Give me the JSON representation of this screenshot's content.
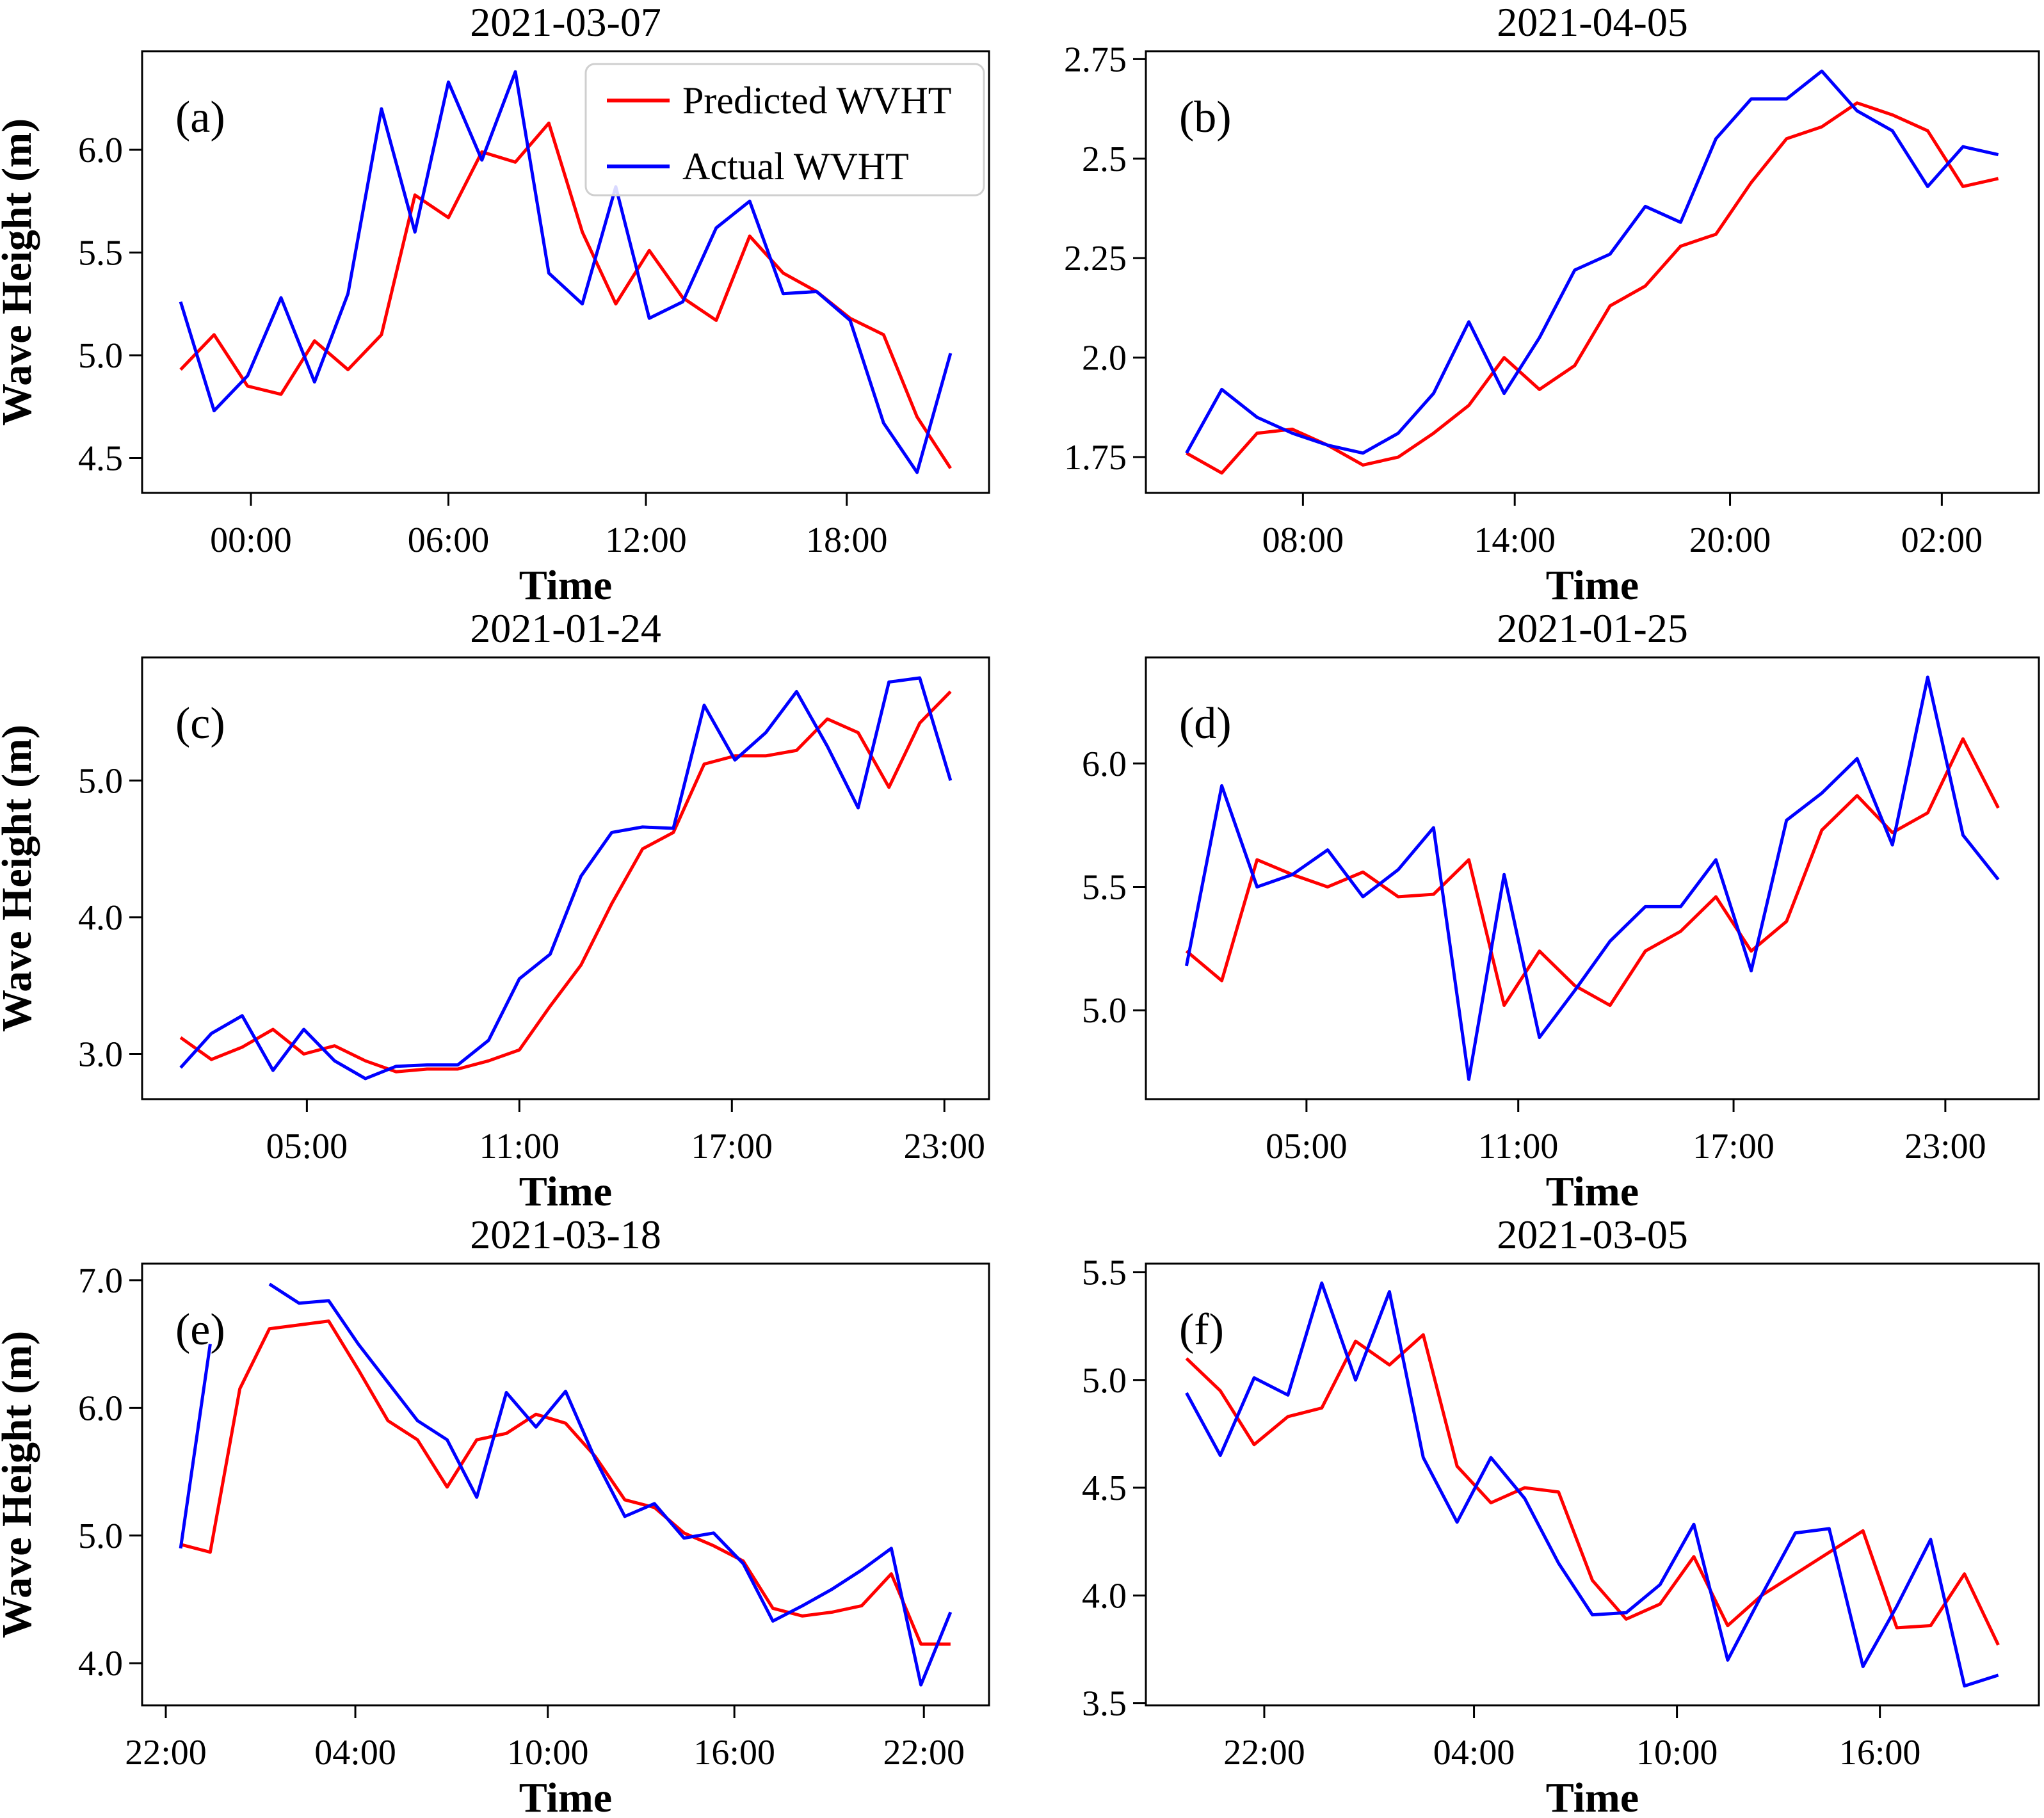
{
  "figure": {
    "xlabel": "Time",
    "ylabel": "Wave Height (m)",
    "background": "#ffffff",
    "legend": {
      "entries": [
        {
          "label": "Predicted WVHT",
          "color": "#ff0000"
        },
        {
          "label": "Actual WVHT",
          "color": "#0000ff"
        }
      ]
    }
  },
  "chart_data": [
    {
      "type": "line",
      "panel_letter": "(a)",
      "title": "2021-03-07",
      "xlabel": "Time",
      "ylabel": "Wave Height (m)",
      "show_ylabel": true,
      "show_legend": true,
      "xlim": [
        -1.15,
        24.15
      ],
      "ylim": [
        4.33,
        6.48
      ],
      "grid": false,
      "y_ticks": [
        "4.5",
        "5.0",
        "5.5",
        "6.0"
      ],
      "x_ticks": [
        {
          "pos": 2.1,
          "label": "00:00"
        },
        {
          "pos": 8.0,
          "label": "06:00"
        },
        {
          "pos": 13.9,
          "label": "12:00"
        },
        {
          "pos": 19.9,
          "label": "18:00"
        }
      ],
      "series": [
        {
          "name": "Predicted WVHT",
          "color": "#ff0000",
          "values": [
            4.93,
            5.1,
            4.85,
            4.81,
            5.07,
            4.93,
            5.1,
            5.78,
            5.67,
            5.99,
            5.94,
            6.13,
            5.6,
            5.25,
            5.51,
            5.28,
            5.17,
            5.58,
            5.4,
            5.31,
            5.18,
            5.1,
            4.7,
            4.45
          ]
        },
        {
          "name": "Actual WVHT",
          "color": "#0000ff",
          "values": [
            5.26,
            4.73,
            4.9,
            5.28,
            4.87,
            5.3,
            6.2,
            5.6,
            6.33,
            5.95,
            6.38,
            5.4,
            5.25,
            5.82,
            5.18,
            5.26,
            5.62,
            5.75,
            5.3,
            5.31,
            5.17,
            4.67,
            4.43,
            5.01
          ]
        }
      ]
    },
    {
      "type": "line",
      "panel_letter": "(b)",
      "title": "2021-04-05",
      "xlabel": "Time",
      "ylabel": "Wave Height (m)",
      "show_ylabel": false,
      "show_legend": false,
      "xlim": [
        -1.15,
        24.15
      ],
      "ylim": [
        1.66,
        2.77
      ],
      "grid": false,
      "y_ticks": [
        "1.75",
        "2.0",
        "2.25",
        "2.5",
        "2.75"
      ],
      "x_ticks": [
        {
          "pos": 3.3,
          "label": "08:00"
        },
        {
          "pos": 9.3,
          "label": "14:00"
        },
        {
          "pos": 15.4,
          "label": "20:00"
        },
        {
          "pos": 21.4,
          "label": "02:00"
        }
      ],
      "series": [
        {
          "name": "Predicted WVHT",
          "color": "#ff0000",
          "values": [
            1.76,
            1.71,
            1.81,
            1.82,
            1.78,
            1.73,
            1.75,
            1.81,
            1.88,
            2.0,
            1.92,
            1.98,
            2.13,
            2.18,
            2.28,
            2.31,
            2.44,
            2.55,
            2.58,
            2.64,
            2.61,
            2.57,
            2.43,
            2.45
          ]
        },
        {
          "name": "Actual WVHT",
          "color": "#0000ff",
          "values": [
            1.76,
            1.92,
            1.85,
            1.81,
            1.78,
            1.76,
            1.81,
            1.91,
            2.09,
            1.91,
            2.05,
            2.22,
            2.26,
            2.38,
            2.34,
            2.55,
            2.65,
            2.65,
            2.72,
            2.62,
            2.57,
            2.43,
            2.53,
            2.51
          ]
        }
      ]
    },
    {
      "type": "line",
      "panel_letter": "(c)",
      "title": "2021-01-24",
      "xlabel": "Time",
      "ylabel": "Wave Height (m)",
      "show_ylabel": true,
      "show_legend": false,
      "xlim": [
        -1.25,
        26.25
      ],
      "ylim": [
        2.67,
        5.9
      ],
      "grid": false,
      "y_ticks": [
        "3.0",
        "4.0",
        "5.0"
      ],
      "x_ticks": [
        {
          "pos": 4.1,
          "label": "05:00"
        },
        {
          "pos": 11.0,
          "label": "11:00"
        },
        {
          "pos": 17.9,
          "label": "17:00"
        },
        {
          "pos": 24.8,
          "label": "23:00"
        }
      ],
      "series": [
        {
          "name": "Predicted WVHT",
          "color": "#ff0000",
          "values": [
            3.12,
            2.96,
            3.05,
            3.18,
            3.0,
            3.06,
            2.95,
            2.87,
            2.89,
            2.89,
            2.95,
            3.03,
            3.35,
            3.65,
            4.1,
            4.5,
            4.62,
            5.12,
            5.18,
            5.18,
            5.22,
            5.45,
            5.35,
            4.95,
            5.42,
            5.65
          ]
        },
        {
          "name": "Actual WVHT",
          "color": "#0000ff",
          "values": [
            2.9,
            3.15,
            3.28,
            2.88,
            3.18,
            2.95,
            2.82,
            2.91,
            2.92,
            2.92,
            3.1,
            3.55,
            3.73,
            4.3,
            4.62,
            4.66,
            4.65,
            5.55,
            5.15,
            5.35,
            5.65,
            5.25,
            4.8,
            5.72,
            5.75,
            5.0
          ]
        }
      ]
    },
    {
      "type": "line",
      "panel_letter": "(d)",
      "title": "2021-01-25",
      "xlabel": "Time",
      "ylabel": "Wave Height (m)",
      "show_ylabel": false,
      "show_legend": false,
      "xlim": [
        -1.15,
        24.15
      ],
      "ylim": [
        4.64,
        6.43
      ],
      "grid": false,
      "y_ticks": [
        "5.0",
        "5.5",
        "6.0"
      ],
      "x_ticks": [
        {
          "pos": 3.4,
          "label": "05:00"
        },
        {
          "pos": 9.4,
          "label": "11:00"
        },
        {
          "pos": 15.5,
          "label": "17:00"
        },
        {
          "pos": 21.5,
          "label": "23:00"
        }
      ],
      "series": [
        {
          "name": "Predicted WVHT",
          "color": "#ff0000",
          "values": [
            5.24,
            5.12,
            5.61,
            5.55,
            5.5,
            5.56,
            5.46,
            5.47,
            5.61,
            5.02,
            5.24,
            5.1,
            5.02,
            5.24,
            5.32,
            5.46,
            5.24,
            5.36,
            5.73,
            5.87,
            5.72,
            5.8,
            6.1,
            5.82
          ]
        },
        {
          "name": "Actual WVHT",
          "color": "#0000ff",
          "values": [
            5.18,
            5.91,
            5.5,
            5.55,
            5.65,
            5.46,
            5.57,
            5.74,
            4.72,
            5.55,
            4.89,
            5.08,
            5.28,
            5.42,
            5.42,
            5.61,
            5.16,
            5.77,
            5.88,
            6.02,
            5.67,
            6.35,
            5.71,
            5.53
          ]
        }
      ]
    },
    {
      "type": "line",
      "panel_letter": "(e)",
      "title": "2021-03-18",
      "xlabel": "Time",
      "ylabel": "Wave Height (m)",
      "show_ylabel": true,
      "show_legend": false,
      "xlim": [
        -1.3,
        27.3
      ],
      "ylim": [
        3.67,
        7.13
      ],
      "grid": false,
      "y_ticks": [
        "4.0",
        "5.0",
        "6.0",
        "7.0"
      ],
      "x_ticks": [
        {
          "pos": -0.5,
          "label": "22:00"
        },
        {
          "pos": 5.9,
          "label": "04:00"
        },
        {
          "pos": 12.4,
          "label": "10:00"
        },
        {
          "pos": 18.7,
          "label": "16:00"
        },
        {
          "pos": 25.1,
          "label": "22:00"
        }
      ],
      "series": [
        {
          "name": "Predicted WVHT",
          "color": "#ff0000",
          "values": [
            4.93,
            4.87,
            6.15,
            6.62,
            6.65,
            6.68,
            6.3,
            5.9,
            5.75,
            5.38,
            5.75,
            5.8,
            5.95,
            5.88,
            5.62,
            5.28,
            5.22,
            5.02,
            4.92,
            4.8,
            4.43,
            4.37,
            4.4,
            4.45,
            4.7,
            4.15,
            4.15
          ]
        },
        {
          "name": "Actual WVHT",
          "color": "#0000ff",
          "values": [
            4.9,
            6.5,
            null,
            6.97,
            6.82,
            6.84,
            6.5,
            6.2,
            5.9,
            5.75,
            5.3,
            6.12,
            5.85,
            6.13,
            5.6,
            5.15,
            5.25,
            4.98,
            5.02,
            4.78,
            4.33,
            4.45,
            4.58,
            4.73,
            4.9,
            3.83,
            4.4
          ]
        }
      ]
    },
    {
      "type": "line",
      "panel_letter": "(f)",
      "title": "2021-03-05",
      "xlabel": "Time",
      "ylabel": "Wave Height (m)",
      "show_ylabel": false,
      "show_legend": false,
      "xlim": [
        -1.2,
        25.2
      ],
      "ylim": [
        3.49,
        5.54
      ],
      "grid": false,
      "y_ticks": [
        "3.5",
        "4.0",
        "4.5",
        "5.0",
        "5.5"
      ],
      "x_ticks": [
        {
          "pos": 2.3,
          "label": "22:00"
        },
        {
          "pos": 8.5,
          "label": "04:00"
        },
        {
          "pos": 14.5,
          "label": "10:00"
        },
        {
          "pos": 20.5,
          "label": "16:00"
        }
      ],
      "series": [
        {
          "name": "Predicted WVHT",
          "color": "#ff0000",
          "values": [
            5.1,
            4.95,
            4.7,
            4.83,
            4.87,
            5.18,
            5.07,
            5.21,
            4.6,
            4.43,
            4.5,
            4.48,
            4.07,
            3.89,
            3.96,
            4.18,
            3.86,
            4.0,
            4.1,
            4.2,
            4.3,
            3.85,
            3.86,
            4.1,
            3.77
          ]
        },
        {
          "name": "Actual WVHT",
          "color": "#0000ff",
          "values": [
            4.94,
            4.65,
            5.01,
            4.93,
            5.45,
            5.0,
            5.41,
            4.64,
            4.34,
            4.64,
            4.45,
            4.15,
            3.91,
            3.92,
            4.05,
            4.33,
            3.7,
            4.0,
            4.29,
            4.31,
            3.67,
            3.95,
            4.26,
            3.58,
            3.63
          ]
        }
      ]
    }
  ]
}
